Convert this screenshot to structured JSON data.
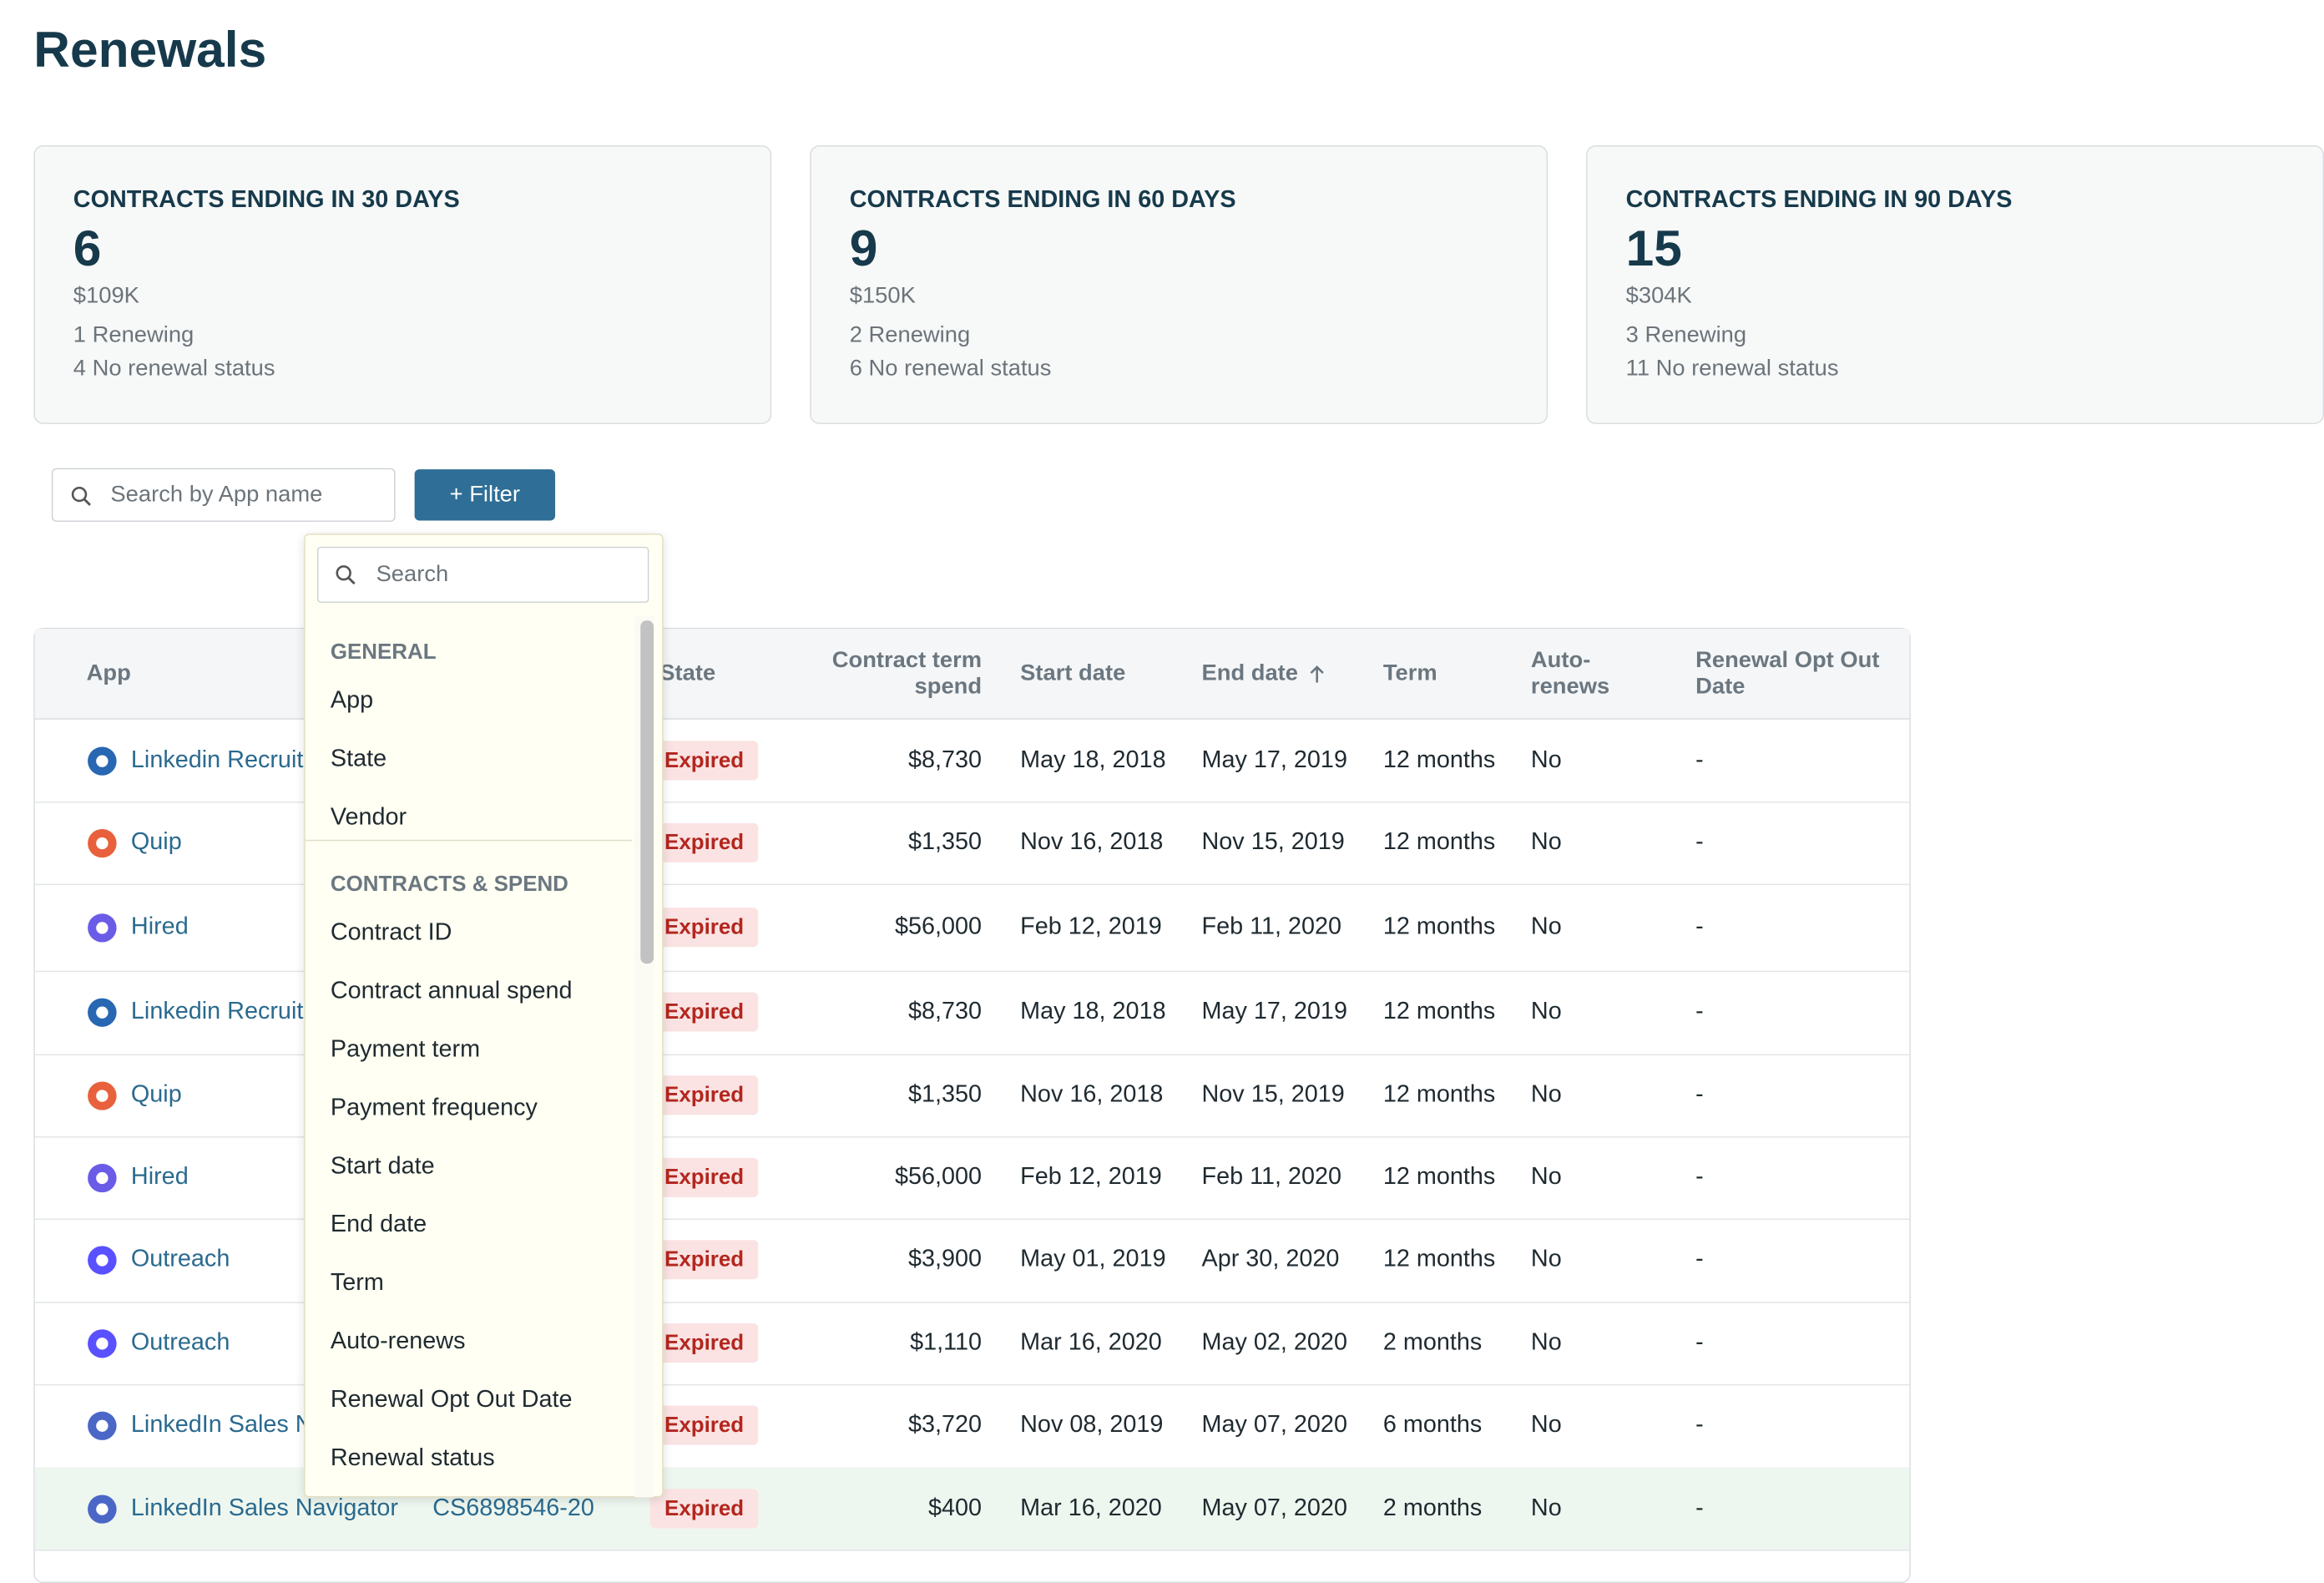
{
  "header": {
    "title": "Renewals"
  },
  "cards": [
    {
      "title": "CONTRACTS ENDING IN 30 DAYS",
      "count": "6",
      "spend": "$109K",
      "renewing": "1 Renewing",
      "no_status": "4 No renewal status"
    },
    {
      "title": "CONTRACTS ENDING IN 60 DAYS",
      "count": "9",
      "spend": "$150K",
      "renewing": "2 Renewing",
      "no_status": "6 No renewal status"
    },
    {
      "title": "CONTRACTS ENDING IN 90 DAYS",
      "count": "15",
      "spend": "$304K",
      "renewing": "3 Renewing",
      "no_status": "11 No renewal status"
    }
  ],
  "toolbar": {
    "search_placeholder": "Search by App name",
    "filter_button": "+ Filter"
  },
  "filter_menu": {
    "search_placeholder": "Search",
    "groups": [
      {
        "label": "GENERAL",
        "items": [
          "App",
          "State",
          "Vendor"
        ]
      },
      {
        "label": "CONTRACTS & SPEND",
        "items": [
          "Contract ID",
          "Contract annual spend",
          "Payment term",
          "Payment frequency",
          "Start date",
          "End date",
          "Term",
          "Auto-renews",
          "Renewal Opt Out Date",
          "Renewal status"
        ]
      }
    ]
  },
  "table": {
    "columns": [
      "App",
      null,
      "State",
      "Contract term spend",
      "Start date",
      "End date",
      "Term",
      "Auto-renews",
      "Renewal Opt Out Date"
    ],
    "rows": [
      {
        "app": "Linkedin Recruiter",
        "icon_color": "#2867b2",
        "contract_id": null,
        "state": "Expired",
        "spend": "$8,730",
        "start": "May 18, 2018",
        "end": "May 17, 2019",
        "term": "12 months",
        "auto_renews": "No",
        "opt_out": "-"
      },
      {
        "app": "Quip",
        "icon_color": "#e8613c",
        "contract_id": null,
        "state": "Expired",
        "spend": "$1,350",
        "start": "Nov 16, 2018",
        "end": "Nov 15, 2019",
        "term": "12 months",
        "auto_renews": "No",
        "opt_out": "-"
      },
      {
        "app": "Hired",
        "icon_color": "#6b5ce7",
        "contract_id": null,
        "state": "Expired",
        "spend": "$56,000",
        "start": "Feb 12, 2019",
        "end": "Feb 11, 2020",
        "term": "12 months",
        "auto_renews": "No",
        "opt_out": "-"
      },
      {
        "app": "Linkedin Recruiter",
        "icon_color": "#2867b2",
        "contract_id": null,
        "state": "Expired",
        "spend": "$8,730",
        "start": "May 18, 2018",
        "end": "May 17, 2019",
        "term": "12 months",
        "auto_renews": "No",
        "opt_out": "-"
      },
      {
        "app": "Quip",
        "icon_color": "#e8613c",
        "contract_id": null,
        "state": "Expired",
        "spend": "$1,350",
        "start": "Nov 16, 2018",
        "end": "Nov 15, 2019",
        "term": "12 months",
        "auto_renews": "No",
        "opt_out": "-"
      },
      {
        "app": "Hired",
        "icon_color": "#6b5ce7",
        "contract_id": null,
        "state": "Expired",
        "spend": "$56,000",
        "start": "Feb 12, 2019",
        "end": "Feb 11, 2020",
        "term": "12 months",
        "auto_renews": "No",
        "opt_out": "-"
      },
      {
        "app": "Outreach",
        "icon_color": "#5951ff",
        "contract_id": null,
        "state": "Expired",
        "spend": "$3,900",
        "start": "May 01, 2019",
        "end": "Apr 30, 2020",
        "term": "12 months",
        "auto_renews": "No",
        "opt_out": "-"
      },
      {
        "app": "Outreach",
        "icon_color": "#5951ff",
        "contract_id": null,
        "state": "Expired",
        "spend": "$1,110",
        "start": "Mar 16, 2020",
        "end": "May 02, 2020",
        "term": "2 months",
        "auto_renews": "No",
        "opt_out": "-"
      },
      {
        "app": "LinkedIn Sales Navigator",
        "icon_color": "#4a67c7",
        "contract_id": null,
        "state": "Expired",
        "spend": "$3,720",
        "start": "Nov 08, 2019",
        "end": "May 07, 2020",
        "term": "6 months",
        "auto_renews": "No",
        "opt_out": "-"
      },
      {
        "app": "LinkedIn Sales Navigator",
        "icon_color": "#4a67c7",
        "contract_id": "CS6898546-20",
        "state": "Expired",
        "spend": "$400",
        "start": "Mar 16, 2020",
        "end": "May 07, 2020",
        "term": "2 months",
        "auto_renews": "No",
        "opt_out": "-"
      }
    ]
  }
}
